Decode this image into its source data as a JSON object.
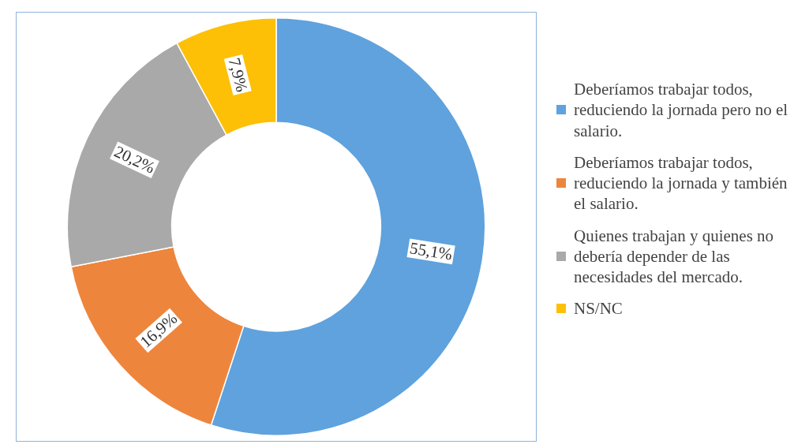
{
  "chart_data": {
    "type": "donut",
    "categories": [
      "Deberíamos trabajar todos, reduciendo la jornada pero no el salario.",
      "Deberíamos trabajar todos, reduciendo la jornada y también el salario.",
      "Quienes trabajan y quienes no debería depender de las necesidades del mercado.",
      "NS/NC"
    ],
    "values": [
      55.1,
      16.9,
      20.2,
      7.9
    ],
    "value_labels": [
      "55,1%",
      "16,9%",
      "20,2%",
      "7,9%"
    ],
    "colors": [
      "#5fa2dd",
      "#ee853c",
      "#a9a9a9",
      "#fdc006"
    ],
    "legend": "right"
  }
}
